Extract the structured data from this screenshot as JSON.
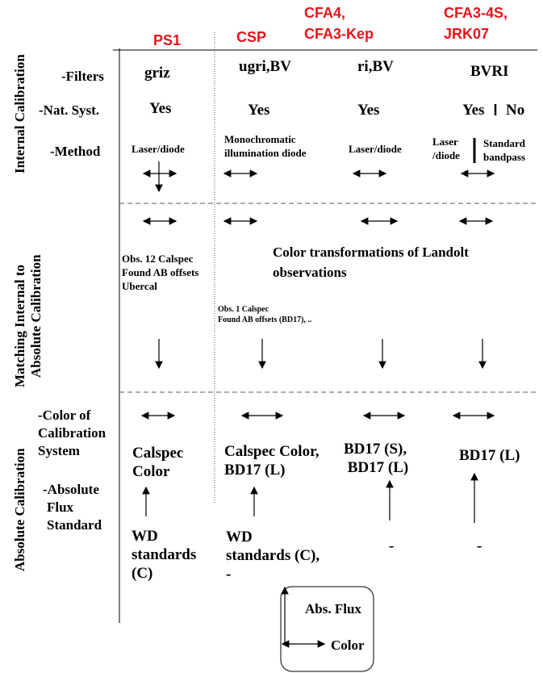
{
  "columns": [
    {
      "header": [
        "PS1"
      ]
    },
    {
      "header": [
        "CSP"
      ]
    },
    {
      "header": [
        "CFA4,",
        "CFA3-Kep"
      ]
    },
    {
      "header": [
        "CFA3-4S,",
        "JRK07"
      ]
    }
  ],
  "sections": [
    {
      "label": [
        "Internal Calibration"
      ]
    },
    {
      "label": [
        "Matching Internal to",
        "Absolute Calibration"
      ]
    },
    {
      "label": [
        "Absolute Calibration"
      ]
    }
  ],
  "rows": {
    "filters": {
      "label": [
        "-Filters"
      ],
      "cells": [
        "griz",
        "ugri,BV",
        "ri,BV",
        "BVRI"
      ]
    },
    "nat_syst": {
      "label": [
        "-Nat. Syst."
      ],
      "cells": [
        "Yes",
        "Yes",
        "Yes",
        "Yes",
        "No"
      ]
    },
    "method": {
      "label": [
        "-Method"
      ],
      "cells": [
        [
          "Laser/diode"
        ],
        [
          "Monochromatic",
          "illumination diode"
        ],
        [
          "Laser/diode"
        ],
        [
          "Laser",
          "/diode"
        ],
        [
          "Standard",
          "bandpass"
        ]
      ]
    },
    "matching": {
      "cells": [
        [
          "Obs. 12 Calspec",
          "Found AB offsets",
          "Ubercal"
        ],
        [
          "Color transformations of Landolt",
          "observations"
        ],
        [
          "Obs. 1 Calspec",
          "Found AB offsets (BD17), .."
        ]
      ]
    },
    "color_system": {
      "label": [
        "-Color of",
        "Calibration",
        "System"
      ],
      "cells": [
        [
          "Calspec",
          "Color"
        ],
        [
          "Calspec Color,",
          "BD17 (L)"
        ],
        [
          "BD17 (S),",
          " BD17 (L)"
        ],
        [
          "BD17 (L)"
        ]
      ]
    },
    "flux_standard": {
      "label": [
        "-Absolute",
        "Flux",
        "Standard"
      ],
      "cells": [
        [
          "WD",
          "standards",
          "(C)"
        ],
        [
          "WD",
          "standards (C),",
          "-"
        ],
        [
          "-"
        ],
        [
          "-"
        ]
      ]
    }
  },
  "legend": {
    "vertical": "Abs. Flux",
    "horizontal": "Color"
  }
}
